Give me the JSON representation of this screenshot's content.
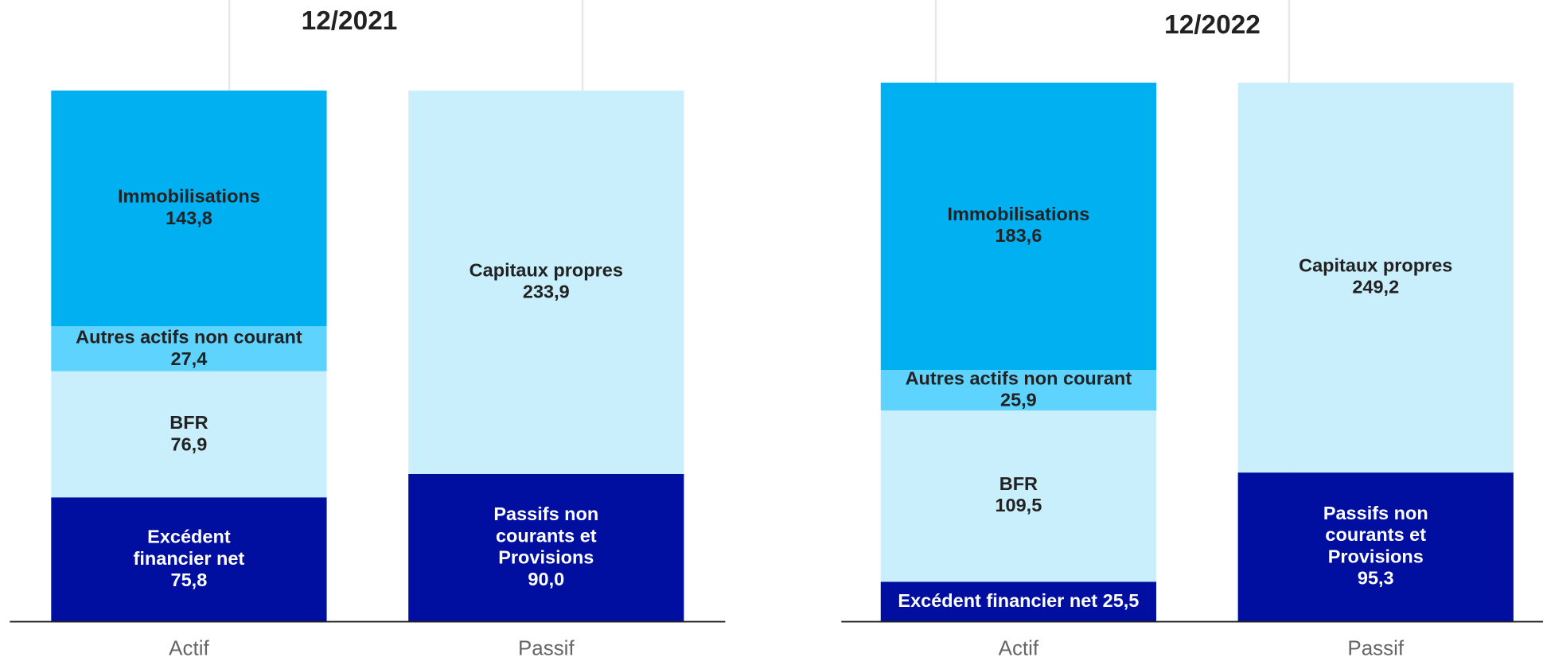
{
  "chart_data": [
    {
      "type": "bar",
      "stacked": true,
      "title": "12/2021",
      "categories": [
        "Actif",
        "Passif"
      ],
      "series": [
        {
          "name": "Excédent financier net",
          "color": "#000f9f",
          "values": [
            75.8,
            null
          ],
          "value_labels": [
            "75,8",
            null
          ]
        },
        {
          "name": "BFR",
          "color": "#c9effd",
          "values": [
            76.9,
            null
          ],
          "value_labels": [
            "76,9",
            null
          ]
        },
        {
          "name": "Autres actifs non courant",
          "color": "#5dd3fe",
          "values": [
            27.4,
            null
          ],
          "value_labels": [
            "27,4",
            null
          ]
        },
        {
          "name": "Immobilisations",
          "color": "#00b0f0",
          "values": [
            143.8,
            null
          ],
          "value_labels": [
            "143,8",
            null
          ]
        },
        {
          "name": "Passifs non courants et Provisions",
          "color": "#000f9f",
          "values": [
            null,
            90.0
          ],
          "value_labels": [
            null,
            "90,0"
          ]
        },
        {
          "name": "Capitaux propres",
          "color": "#c9effd",
          "values": [
            null,
            233.9
          ],
          "value_labels": [
            null,
            "233,9"
          ]
        }
      ]
    },
    {
      "type": "bar",
      "stacked": true,
      "title": "12/2022",
      "categories": [
        "Actif",
        "Passif"
      ],
      "series": [
        {
          "name": "Excédent financier net",
          "color": "#000f9f",
          "values": [
            25.5,
            null
          ],
          "value_labels": [
            "25,5",
            null
          ]
        },
        {
          "name": "BFR",
          "color": "#c9effd",
          "values": [
            109.5,
            null
          ],
          "value_labels": [
            "109,5",
            null
          ]
        },
        {
          "name": "Autres actifs non courant",
          "color": "#5dd3fe",
          "values": [
            25.9,
            null
          ],
          "value_labels": [
            "25,9",
            null
          ]
        },
        {
          "name": "Immobilisations",
          "color": "#00b0f0",
          "values": [
            183.6,
            null
          ],
          "value_labels": [
            "183,6",
            null
          ]
        },
        {
          "name": "Passifs non courants et Provisions",
          "color": "#000f9f",
          "values": [
            null,
            95.3
          ],
          "value_labels": [
            null,
            "95,3"
          ]
        },
        {
          "name": "Capitaux propres",
          "color": "#c9effd",
          "values": [
            null,
            249.2
          ],
          "value_labels": [
            null,
            "249,2"
          ]
        }
      ]
    }
  ]
}
